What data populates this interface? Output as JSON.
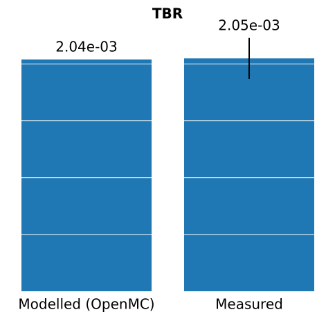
{
  "chart_data": {
    "type": "bar",
    "title": "TBR",
    "categories": [
      "Modelled (OpenMC)",
      "Measured"
    ],
    "values": [
      0.00204,
      0.00205
    ],
    "value_labels": [
      "2.04e-03",
      "2.05e-03"
    ],
    "errors": [
      null,
      0.00018
    ],
    "color": "#1f77b4",
    "ylim": [
      0,
      0.00225
    ],
    "yticks": [
      0.0005,
      0.001,
      0.0015,
      0.002
    ],
    "grid": true
  }
}
